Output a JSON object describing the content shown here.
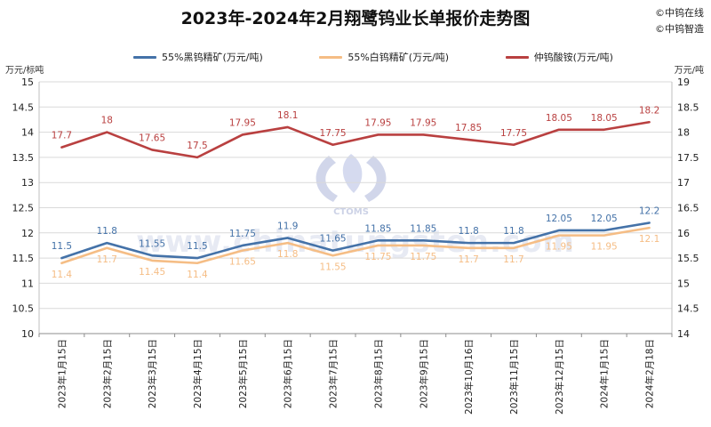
{
  "header": {
    "title": "2023年-2024年2月翔鹭钨业长单报价走势图",
    "brand_line_1": "©中钨在线",
    "brand_line_2": "©中钨智造"
  },
  "watermark": {
    "logo_text": "CTOMS",
    "url_text": "www.chinatungsten.com"
  },
  "colors": {
    "black_tungsten": "#4472a8",
    "white_tungsten": "#f5bd85",
    "apt": "#b94040",
    "grid": "#d9d9d9"
  },
  "chart_data": {
    "type": "line",
    "title": "2023年-2024年2月翔鹭钨业长单报价走势图",
    "categories": [
      "2023年1月15日",
      "2023年2月15日",
      "2023年3月15日",
      "2023年4月15日",
      "2023年5月15日",
      "2023年6月15日",
      "2023年7月15日",
      "2023年8月15日",
      "2023年9月15日",
      "2023年10月16日",
      "2023年11月15日",
      "2023年12月15日",
      "2024年1月15日",
      "2024年2月18日"
    ],
    "y_left": {
      "label": "万元/标吨",
      "range": [
        10,
        15
      ],
      "ticks": [
        "10",
        "10.5",
        "11",
        "11.5",
        "12",
        "12.5",
        "13",
        "13.5",
        "14",
        "14.5",
        "15"
      ]
    },
    "y_right": {
      "label": "万元/吨",
      "range": [
        14,
        19
      ],
      "ticks": [
        "14",
        "14.5",
        "15",
        "15.5",
        "16",
        "16.5",
        "17",
        "17.5",
        "18",
        "18.5",
        "19"
      ]
    },
    "series": [
      {
        "name": "55%黑钨精矿(万元/吨)",
        "axis": "left",
        "color": "#4472a8",
        "values": [
          11.5,
          11.8,
          11.55,
          11.5,
          11.75,
          11.9,
          11.65,
          11.85,
          11.85,
          11.8,
          11.8,
          12.05,
          12.05,
          12.2
        ],
        "labels": [
          "11.5",
          "11.8",
          "11.55",
          "11.5",
          "11.75",
          "11.9",
          "11.65",
          "11.85",
          "11.85",
          "11.8",
          "11.8",
          "12.05",
          "12.05",
          "12.2"
        ]
      },
      {
        "name": "55%白钨精矿(万元/吨)",
        "axis": "left",
        "color": "#f5bd85",
        "values": [
          11.4,
          11.7,
          11.45,
          11.4,
          11.65,
          11.8,
          11.55,
          11.75,
          11.75,
          11.7,
          11.7,
          11.95,
          11.95,
          12.1
        ],
        "labels": [
          "11.4",
          "11.7",
          "11.45",
          "11.4",
          "11.65",
          "11.8",
          "11.55",
          "11.75",
          "11.75",
          "11.7",
          "11.7",
          "11.95",
          "11.95",
          "12.1"
        ]
      },
      {
        "name": "仲钨酸铵(万元/吨)",
        "axis": "right",
        "color": "#b94040",
        "values": [
          17.7,
          18,
          17.65,
          17.5,
          17.95,
          18.1,
          17.75,
          17.95,
          17.95,
          17.85,
          17.75,
          18.05,
          18.05,
          18.2
        ],
        "labels": [
          "17.7",
          "18",
          "17.65",
          "17.5",
          "17.95",
          "18.1",
          "17.75",
          "17.95",
          "17.95",
          "17.85",
          "17.75",
          "18.05",
          "18.05",
          "18.2"
        ]
      }
    ],
    "grid": true,
    "legend_position": "top"
  }
}
